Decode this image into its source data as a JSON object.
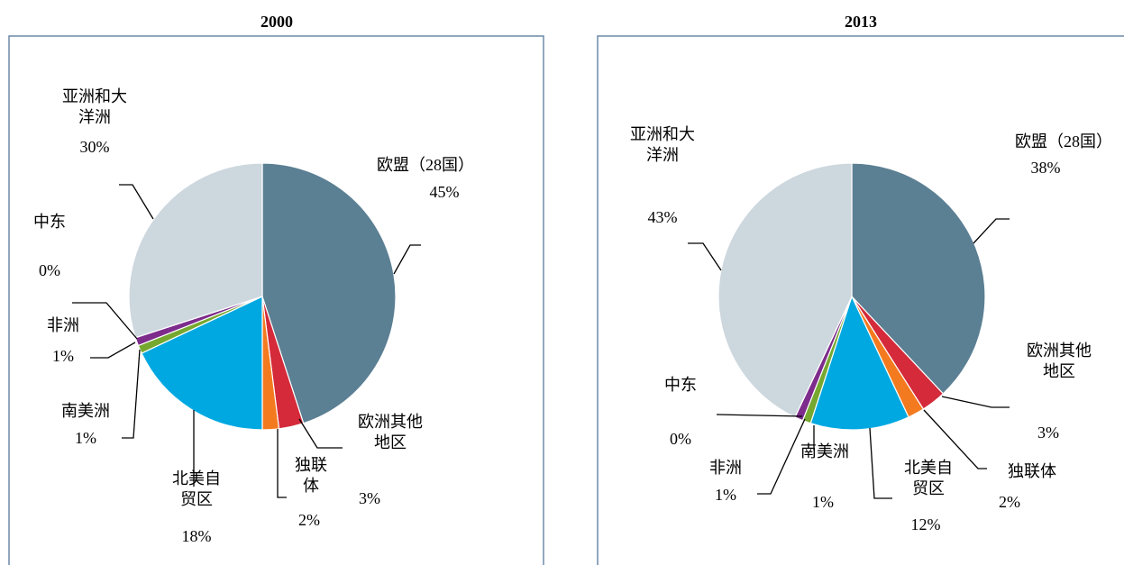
{
  "chart_data": [
    {
      "type": "pie",
      "title": "2000",
      "categories": [
        "欧盟（28国）",
        "欧洲其他地区",
        "独联体",
        "北美自贸区",
        "南美洲",
        "非洲",
        "中东",
        "亚洲和大洋洲"
      ],
      "values": [
        45,
        3,
        2,
        18,
        1,
        1,
        0,
        30
      ],
      "value_labels": [
        "45%",
        "3%",
        "2%",
        "18%",
        "1%",
        "1%",
        "0%",
        "30%"
      ],
      "colors": [
        "#5b7f93",
        "#d42a3a",
        "#f47a20",
        "#00a8e1",
        "#76a830",
        "#7d2c8c",
        "#3a6e9c",
        "#cdd7de"
      ]
    },
    {
      "type": "pie",
      "title": "2013",
      "categories": [
        "欧盟（28国）",
        "欧洲其他地区",
        "独联体",
        "北美自贸区",
        "南美洲",
        "非洲",
        "中东",
        "亚洲和大洋洲"
      ],
      "values": [
        38,
        3,
        2,
        12,
        1,
        1,
        0,
        43
      ],
      "value_labels": [
        "38%",
        "3%",
        "2%",
        "12%",
        "1%",
        "1%",
        "0%",
        "43%"
      ],
      "colors": [
        "#5b7f93",
        "#d42a3a",
        "#f47a20",
        "#00a8e1",
        "#76a830",
        "#7d2c8c",
        "#3a6e9c",
        "#cdd7de"
      ]
    }
  ]
}
